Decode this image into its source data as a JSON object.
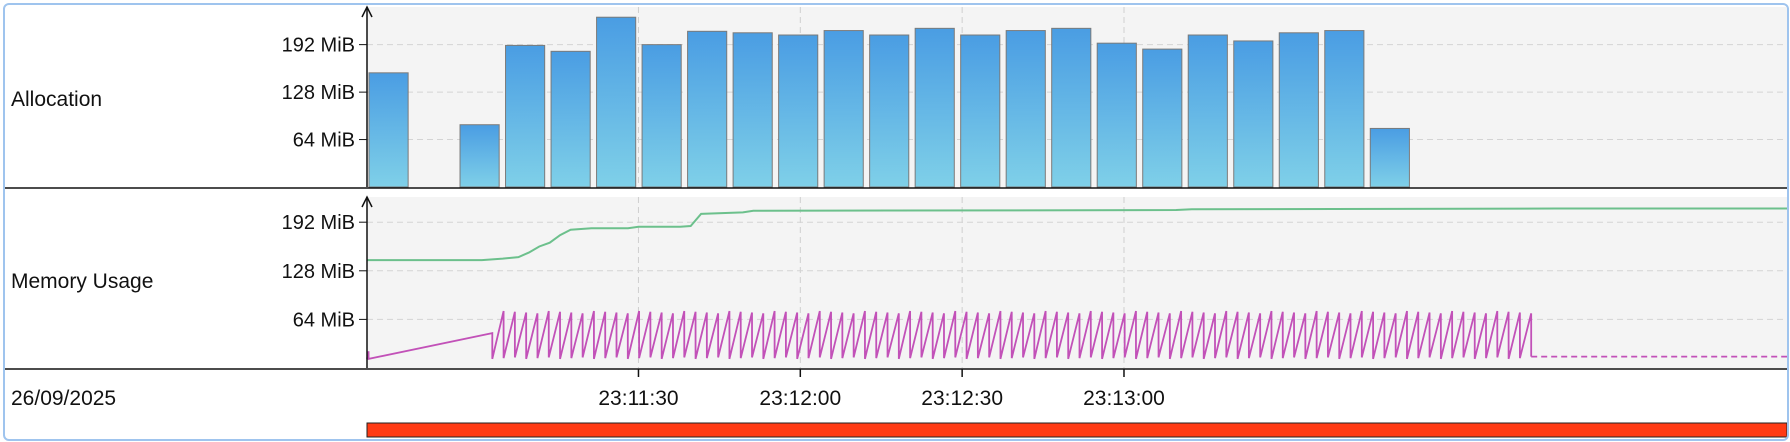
{
  "chart_data": [
    {
      "type": "bar",
      "label": "Allocation",
      "y_ticks": [
        "64 MiB",
        "128 MiB",
        "192 MiB"
      ],
      "y_tick_values": [
        64,
        128,
        192
      ],
      "ylim": [
        0,
        232
      ],
      "unit": "MiB",
      "bar_interval_seconds": 5,
      "series": [
        {
          "name": "",
          "values": [
            154,
            0,
            84,
            191,
            183,
            229,
            192,
            210,
            208,
            205,
            211,
            205,
            214,
            205,
            211,
            214,
            194,
            186,
            205,
            197,
            208,
            211,
            79
          ]
        }
      ],
      "color_top": "#4a9de3",
      "color_bottom": "#7fd0e8"
    },
    {
      "type": "line",
      "label": "Memory Usage",
      "y_ticks": [
        "64 MiB",
        "128 MiB",
        "192 MiB"
      ],
      "y_tick_values": [
        64,
        128,
        192
      ],
      "ylim": [
        0,
        212
      ],
      "unit": "MiB",
      "series": [
        {
          "name": "",
          "color": "#6cc08c",
          "x_seconds": [
            0,
            22,
            28,
            31,
            33,
            35,
            41,
            43,
            50,
            52,
            62,
            53,
            54,
            69,
            78,
            121,
            152,
            198,
            228
          ],
          "y": [
            142,
            142,
            144,
            150,
            160,
            181,
            184,
            185,
            185,
            187,
            188,
            204,
            205,
            209,
            209,
            210,
            211,
            212,
            212
          ],
          "order_note": ""
        },
        {
          "name": "",
          "color": "#c251b8",
          "sawtooth_start_seconds": 24,
          "sawtooth_end_seconds": 223,
          "sawtooth_low": 12,
          "sawtooth_high": 75,
          "sawtooth_cycles": 92,
          "initial_ramp": [
            [
              0,
              12
            ],
            [
              24,
              46
            ]
          ],
          "tail_value": 15,
          "tail_dashed": true
        }
      ]
    }
  ],
  "x_axis": {
    "date": "26/09/2025",
    "ticks": [
      "23:11:30",
      "23:12:00",
      "23:12:30",
      "23:13:00"
    ],
    "range_seconds": [
      0,
      272
    ]
  },
  "timeline_bar_color": "#ff3a14",
  "axis_color": "#111111"
}
